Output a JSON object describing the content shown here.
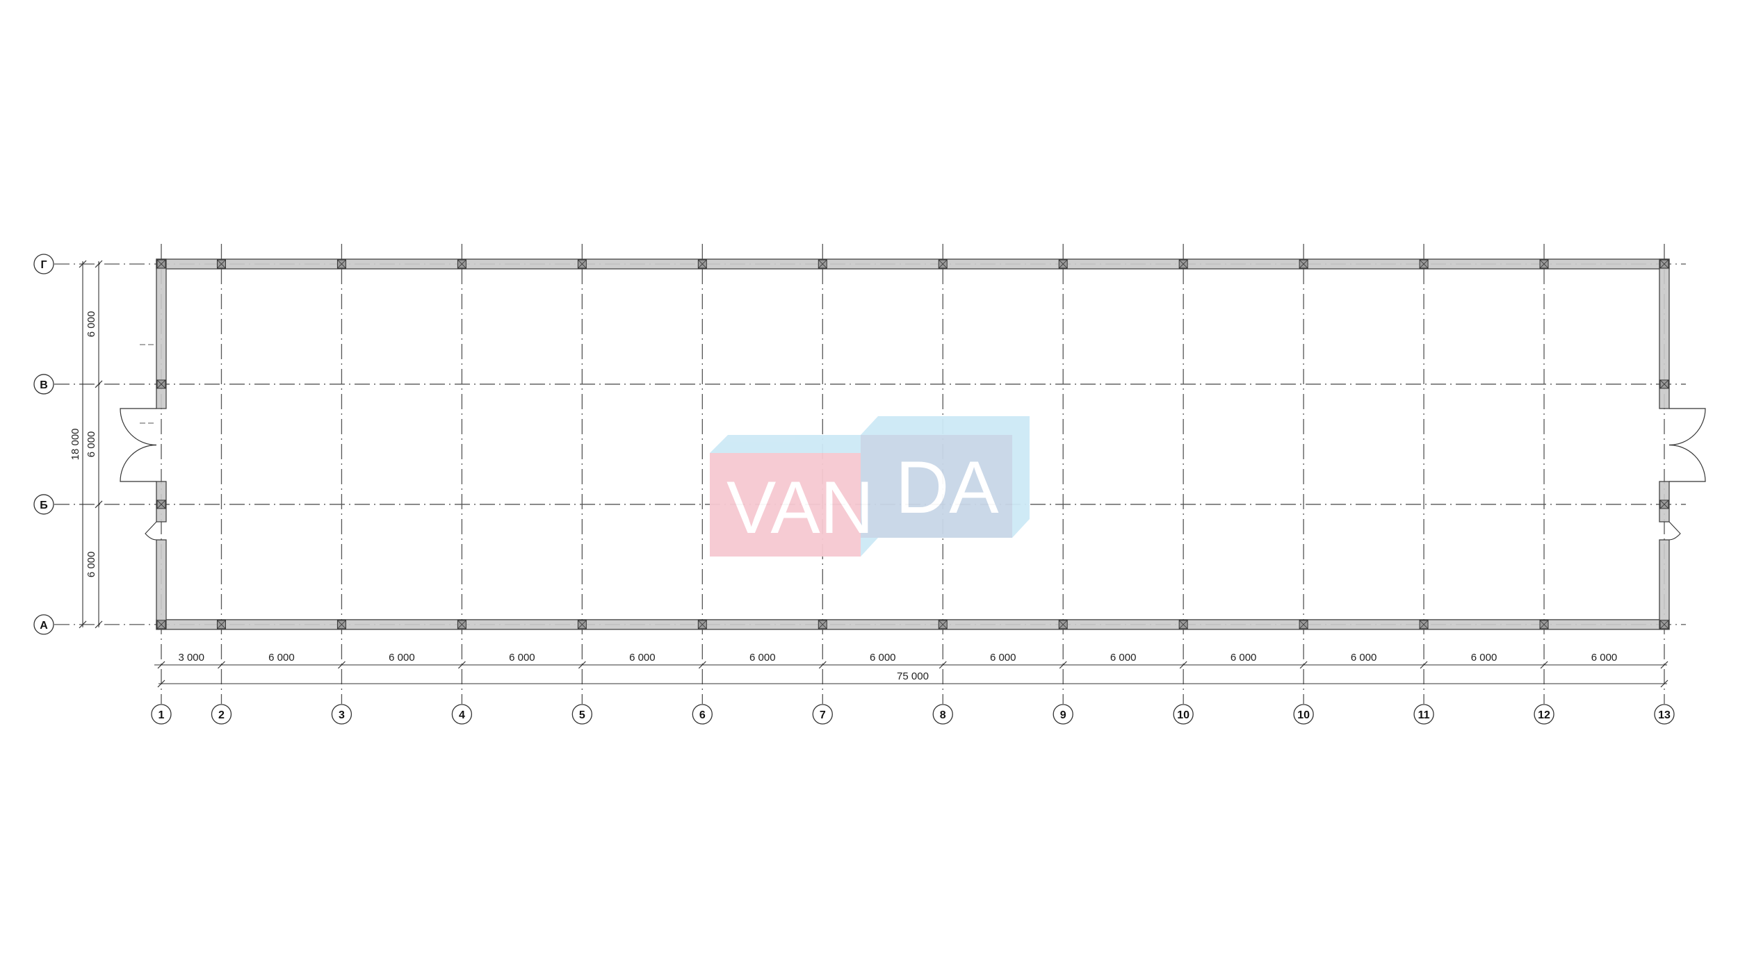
{
  "plan": {
    "column_axes": [
      "1",
      "2",
      "3",
      "4",
      "5",
      "6",
      "7",
      "8",
      "9",
      "10",
      "10",
      "11",
      "12",
      "13"
    ],
    "row_axes_top_to_bottom": [
      "Г",
      "В",
      "Б",
      "А"
    ],
    "column_dimensions": [
      "3 000",
      "6 000",
      "6 000",
      "6 000",
      "6 000",
      "6 000",
      "6 000",
      "6 000",
      "6 000",
      "6 000",
      "6 000",
      "6 000",
      "6 000"
    ],
    "column_overall": "75 000",
    "row_dimensions_top_to_bottom": [
      "6 000",
      "6 000",
      "6 000"
    ],
    "row_overall": "18 000"
  },
  "watermark": {
    "text_left": "VAN",
    "text_right": "DA",
    "colors": {
      "pink": "#f6c9d1",
      "light_blue": "#cde9f6",
      "blue_gray": "#c8d6e7"
    }
  },
  "colors": {
    "wall_fill": "#c9c9c9",
    "line": "#444444",
    "axis": "#555555"
  }
}
